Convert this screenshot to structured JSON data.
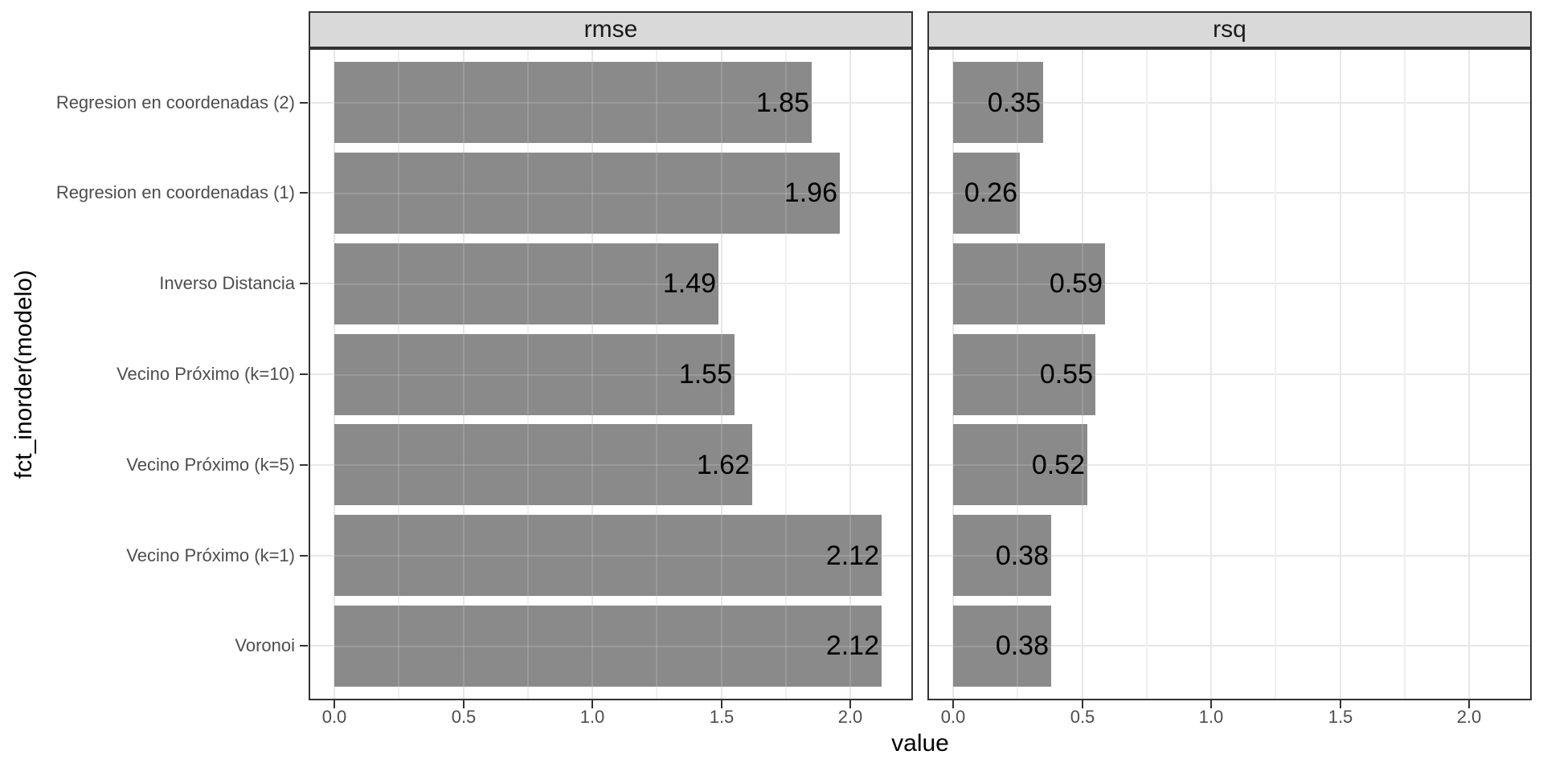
{
  "chart_data": {
    "type": "bar",
    "orientation": "horizontal",
    "title": "",
    "xlabel": "value",
    "ylabel": "fct_inorder(modelo)",
    "facets": [
      "rmse",
      "rsq"
    ],
    "categories": [
      "Regresion en coordenadas (2)",
      "Regresion en coordenadas (1)",
      "Inverso Distancia",
      "Vecino Próximo (k=10)",
      "Vecino Próximo (k=5)",
      "Vecino Próximo (k=1)",
      "Voronoi"
    ],
    "series": [
      {
        "name": "rmse",
        "values": [
          1.85,
          1.96,
          1.49,
          1.55,
          1.62,
          2.12,
          2.12
        ],
        "labels": [
          "1.85",
          "1.96",
          "1.49",
          "1.55",
          "1.62",
          "2.12",
          "2.12"
        ]
      },
      {
        "name": "rsq",
        "values": [
          0.35,
          0.26,
          0.59,
          0.55,
          0.52,
          0.38,
          0.38
        ],
        "labels": [
          "0.35",
          "0.26",
          "0.59",
          "0.55",
          "0.52",
          "0.38",
          "0.38"
        ]
      }
    ],
    "x_ticks": {
      "values": [
        0,
        0.5,
        1,
        1.5,
        2
      ],
      "labels": [
        "0.0",
        "0.5",
        "1.0",
        "1.5",
        "2.0"
      ]
    },
    "x_minor_ticks": [
      0.25,
      0.75,
      1.25,
      1.75
    ],
    "xlim": [
      -0.1,
      2.24
    ],
    "grid": "major-and-minor",
    "legend": "none",
    "colors": {
      "bar_fill": "#8a8a8a",
      "strip_background": "#d9d9d9",
      "panel_border": "#333333",
      "grid_major": "#e7e7e7",
      "grid_minor": "#f0f0f0",
      "axis_text": "#4d4d4d",
      "title_text": "#000000",
      "bar_label_text": "#000000",
      "background": "#ffffff"
    }
  }
}
